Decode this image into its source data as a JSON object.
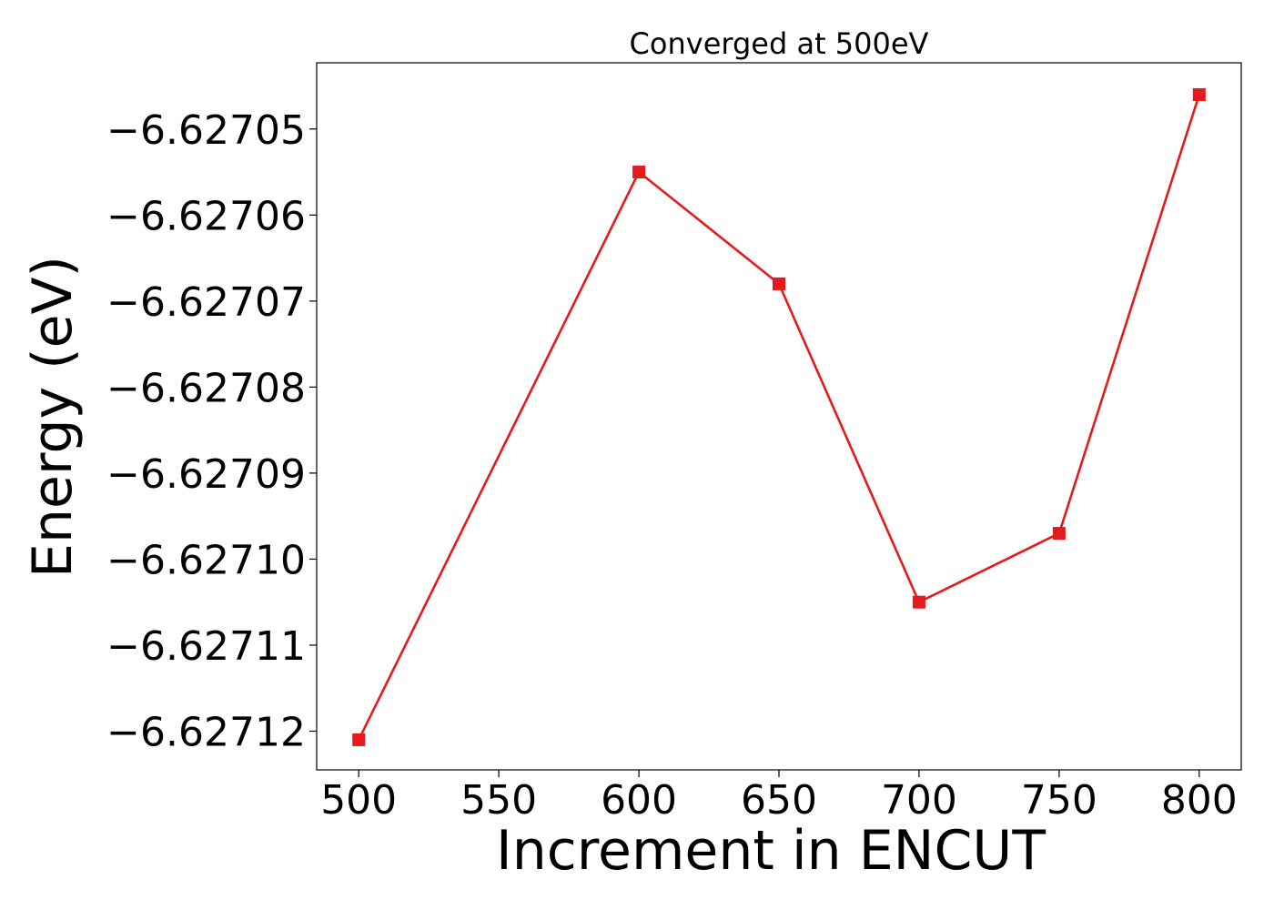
{
  "chart_data": {
    "type": "line",
    "title": "Converged at 500eV",
    "xlabel": "Increment in ENCUT",
    "ylabel": "Energy (eV)",
    "x": [
      500,
      600,
      650,
      700,
      750,
      800
    ],
    "series": [
      {
        "values": [
          -6.627121,
          -6.627055,
          -6.627068,
          -6.627105,
          -6.627097,
          -6.627046
        ],
        "color": "#e41a1c",
        "marker": "square"
      }
    ],
    "xticks": [
      500,
      550,
      600,
      650,
      700,
      750,
      800
    ],
    "xtick_labels": [
      "500",
      "550",
      "600",
      "650",
      "700",
      "750",
      "800"
    ],
    "yticks": [
      -6.62705,
      -6.62706,
      -6.62707,
      -6.62708,
      -6.62709,
      -6.6271,
      -6.62711,
      -6.62712
    ],
    "ytick_labels": [
      "−6.62705",
      "−6.62706",
      "−6.62707",
      "−6.62708",
      "−6.62709",
      "−6.62710",
      "−6.62711",
      "−6.62712"
    ],
    "xlim": [
      485,
      815
    ],
    "ylim": [
      -6.6271245,
      -6.6270423
    ],
    "grid": false,
    "legend": "none"
  }
}
